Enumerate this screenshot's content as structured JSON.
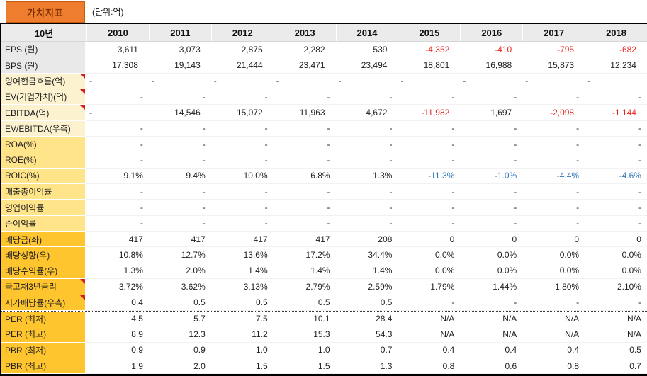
{
  "title": {
    "label": "가치지표",
    "unit": "(단위:억)"
  },
  "colors": {
    "title_bg": "#EE7D2D",
    "title_text": "#7E3000",
    "header_bg": "#EBEBEB",
    "label_gray": "#E9E9E9",
    "label_cream": "#FCF2D0",
    "label_light_gold": "#FFE48A",
    "label_gold": "#FFC52E",
    "negative_red": "#E7261F",
    "negative_blue": "#2E75B6",
    "comment_marker_red": "#D21E1E"
  },
  "table": {
    "header": {
      "label": "10년",
      "years": [
        "2010",
        "2011",
        "2012",
        "2013",
        "2014",
        "2015",
        "2016",
        "2017",
        "2018"
      ]
    },
    "rows": [
      {
        "label": "EPS (원)",
        "section": "gray",
        "pad": "wide",
        "values": [
          "3,611",
          "3,073",
          "2,875",
          "2,282",
          "539",
          {
            "v": "-4,352",
            "c": "red"
          },
          {
            "v": "-410",
            "c": "red"
          },
          {
            "v": "-795",
            "c": "red"
          },
          {
            "v": "-682",
            "c": "red"
          }
        ]
      },
      {
        "label": "BPS (원)",
        "section": "gray",
        "pad": "wide",
        "values": [
          "17,308",
          "19,143",
          "21,444",
          "23,471",
          "23,494",
          "18,801",
          "16,988",
          "15,873",
          "12,234"
        ]
      },
      {
        "label": "잉여현금흐름(억)",
        "section": "cream",
        "marker": true,
        "pad": "wide",
        "values": [
          {
            "v": "-",
            "a": "left"
          },
          {
            "v": "-",
            "a": "left"
          },
          {
            "v": "-",
            "a": "left"
          },
          {
            "v": "-",
            "a": "left"
          },
          {
            "v": "-",
            "a": "left"
          },
          {
            "v": "-",
            "a": "left"
          },
          {
            "v": "-",
            "a": "left"
          },
          {
            "v": "-",
            "a": "left"
          },
          {
            "v": "-",
            "a": "left"
          }
        ]
      },
      {
        "label": "EV(기업가치)(억)",
        "section": "cream",
        "marker": true,
        "values": [
          "-",
          "-",
          "-",
          "-",
          "-",
          "-",
          "-",
          "-",
          "-"
        ]
      },
      {
        "label": "EBITDA(억)",
        "section": "cream",
        "marker": true,
        "pad": "wide",
        "values": [
          {
            "v": "-",
            "a": "left"
          },
          "14,546",
          "15,072",
          "11,963",
          "4,672",
          {
            "v": "-11,982",
            "c": "red"
          },
          "1,697",
          {
            "v": "-2,098",
            "c": "red"
          },
          {
            "v": "-1,144",
            "c": "red"
          }
        ]
      },
      {
        "label": "EV/EBITDA(우측)",
        "section": "cream",
        "values": [
          "-",
          "-",
          "-",
          "-",
          "-",
          "-",
          "-",
          "-",
          "-"
        ]
      },
      {
        "label": "ROA(%)",
        "section": "lgold",
        "dotted_top": true,
        "values": [
          "-",
          "-",
          "-",
          "-",
          "-",
          "-",
          "-",
          "-",
          "-"
        ]
      },
      {
        "label": "ROE(%)",
        "section": "lgold",
        "values": [
          "-",
          "-",
          "-",
          "-",
          "-",
          "-",
          "-",
          "-",
          "-"
        ]
      },
      {
        "label": "ROIC(%)",
        "section": "lgold",
        "values": [
          "9.1%",
          "9.4%",
          "10.0%",
          "6.8%",
          "1.3%",
          {
            "v": "-11.3%",
            "c": "blue"
          },
          {
            "v": "-1.0%",
            "c": "blue"
          },
          {
            "v": "-4.4%",
            "c": "blue"
          },
          {
            "v": "-4.6%",
            "c": "blue"
          }
        ]
      },
      {
        "label": "매출총이익률",
        "section": "lgold",
        "values": [
          "-",
          "-",
          "-",
          "-",
          "-",
          "-",
          "-",
          "-",
          "-"
        ]
      },
      {
        "label": "영업이익률",
        "section": "lgold",
        "values": [
          "-",
          "-",
          "-",
          "-",
          "-",
          "-",
          "-",
          "-",
          "-"
        ]
      },
      {
        "label": "순이익률",
        "section": "lgold",
        "values": [
          "-",
          "-",
          "-",
          "-",
          "-",
          "-",
          "-",
          "-",
          "-"
        ]
      },
      {
        "label": "배당금(좌)",
        "section": "gold",
        "dotted_top": true,
        "values": [
          "417",
          "417",
          "417",
          "417",
          "208",
          "0",
          "0",
          "0",
          "0"
        ]
      },
      {
        "label": "배당성향(우)",
        "section": "gold",
        "values": [
          "10.8%",
          "12.7%",
          "13.6%",
          "17.2%",
          "34.4%",
          "0.0%",
          "0.0%",
          "0.0%",
          "0.0%"
        ]
      },
      {
        "label": "배당수익률(우)",
        "section": "gold",
        "values": [
          "1.3%",
          "2.0%",
          "1.4%",
          "1.4%",
          "1.4%",
          "0.0%",
          "0.0%",
          "0.0%",
          "0.0%"
        ]
      },
      {
        "label": "국고채3년금리",
        "section": "gold",
        "marker": true,
        "values": [
          "3.72%",
          "3.62%",
          "3.13%",
          "2.79%",
          "2.59%",
          "1.79%",
          "1.44%",
          "1.80%",
          "2.10%"
        ]
      },
      {
        "label": "시가배당률(우측)",
        "section": "gold",
        "marker": true,
        "values": [
          "0.4",
          "0.5",
          "0.5",
          "0.5",
          "0.5",
          "-",
          "-",
          "-",
          "-"
        ]
      },
      {
        "label": "PER (최저)",
        "section": "gold",
        "dotted_top": true,
        "values": [
          "4.5",
          "5.7",
          "7.5",
          "10.1",
          "28.4",
          "N/A",
          "N/A",
          "N/A",
          "N/A"
        ]
      },
      {
        "label": "PER (최고)",
        "section": "gold",
        "values": [
          "8.9",
          "12.3",
          "11.2",
          "15.3",
          "54.3",
          "N/A",
          "N/A",
          "N/A",
          "N/A"
        ]
      },
      {
        "label": "PBR (최저)",
        "section": "gold",
        "values": [
          "0.9",
          "0.9",
          "1.0",
          "1.0",
          "0.7",
          "0.4",
          "0.4",
          "0.4",
          "0.5"
        ]
      },
      {
        "label": "PBR (최고)",
        "section": "gold",
        "values": [
          "1.9",
          "2.0",
          "1.5",
          "1.5",
          "1.3",
          "0.8",
          "0.6",
          "0.8",
          "0.7"
        ]
      }
    ]
  }
}
